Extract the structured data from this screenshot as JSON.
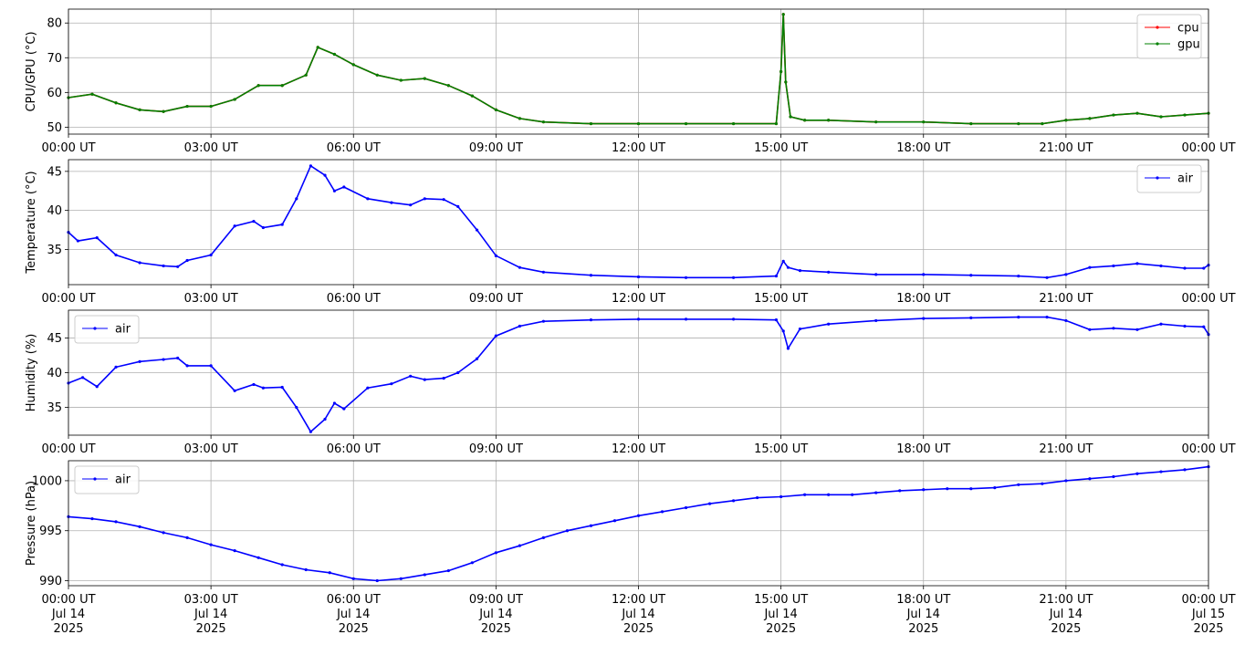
{
  "chart_data": [
    {
      "type": "line",
      "ylabel": "CPU/GPU (°C)",
      "xlim": [
        "2025-07-14 00:00",
        "2025-07-15 00:00"
      ],
      "ylim": [
        48,
        84
      ],
      "yticks": [
        50,
        60,
        70,
        80
      ],
      "grid": true,
      "legend": "top-right",
      "x_tick_labels": [
        "00:00 UT",
        "03:00 UT",
        "06:00 UT",
        "09:00 UT",
        "12:00 UT",
        "15:00 UT",
        "18:00 UT",
        "21:00 UT",
        "00:00 UT"
      ],
      "x_hours": [
        0,
        0.5,
        1,
        1.5,
        2,
        2.5,
        3,
        3.5,
        4,
        4.5,
        5,
        5.25,
        5.6,
        6,
        6.5,
        7,
        7.5,
        8,
        8.5,
        9,
        9.5,
        10,
        11,
        12,
        13,
        14,
        14.9,
        15.0,
        15.05,
        15.1,
        15.2,
        15.5,
        16,
        17,
        18,
        19,
        20,
        20.5,
        21,
        21.5,
        22,
        22.5,
        23,
        23.5,
        24
      ],
      "series": [
        {
          "name": "cpu",
          "color": "#ff0000",
          "values": [
            58.5,
            59.5,
            57,
            55,
            54.5,
            56,
            56,
            58,
            62,
            62,
            65,
            73,
            71,
            68,
            65,
            63.5,
            64,
            62,
            59,
            55,
            52.5,
            51.5,
            51,
            51,
            51,
            51,
            51,
            66,
            82.5,
            63,
            53,
            52,
            52,
            51.5,
            51.5,
            51,
            51,
            51,
            52,
            52.5,
            53.5,
            54,
            53,
            53.5,
            54
          ]
        },
        {
          "name": "gpu",
          "color": "#008000",
          "values": [
            58.5,
            59.5,
            57,
            55,
            54.5,
            56,
            56,
            58,
            62,
            62,
            65,
            73,
            71,
            68,
            65,
            63.5,
            64,
            62,
            59,
            55,
            52.5,
            51.5,
            51,
            51,
            51,
            51,
            51,
            66,
            82.5,
            63,
            53,
            52,
            52,
            51.5,
            51.5,
            51,
            51,
            51,
            52,
            52.5,
            53.5,
            54,
            53,
            53.5,
            54
          ]
        }
      ]
    },
    {
      "type": "line",
      "ylabel": "Temperature (°C)",
      "xlim": [
        "2025-07-14 00:00",
        "2025-07-15 00:00"
      ],
      "ylim": [
        30.5,
        46.5
      ],
      "yticks": [
        35,
        40,
        45
      ],
      "grid": true,
      "legend": "top-right",
      "x_tick_labels": [
        "00:00 UT",
        "03:00 UT",
        "06:00 UT",
        "09:00 UT",
        "12:00 UT",
        "15:00 UT",
        "18:00 UT",
        "21:00 UT",
        "00:00 UT"
      ],
      "x_hours": [
        0,
        0.2,
        0.6,
        1,
        1.5,
        2,
        2.3,
        2.5,
        3,
        3.5,
        3.9,
        4.1,
        4.5,
        4.8,
        5.1,
        5.4,
        5.6,
        5.8,
        6.3,
        6.8,
        7.2,
        7.5,
        7.9,
        8.2,
        8.6,
        9,
        9.5,
        10,
        11,
        12,
        13,
        14,
        14.9,
        15.05,
        15.15,
        15.4,
        16,
        17,
        18,
        19,
        20,
        20.6,
        21,
        21.5,
        22,
        22.5,
        23,
        23.5,
        23.9,
        24
      ],
      "series": [
        {
          "name": "air",
          "color": "#0000ff",
          "values": [
            37.2,
            36.1,
            36.5,
            34.3,
            33.3,
            32.9,
            32.8,
            33.6,
            34.3,
            38,
            38.6,
            37.8,
            38.2,
            41.5,
            45.7,
            44.5,
            42.5,
            43,
            41.5,
            41,
            40.7,
            41.5,
            41.4,
            40.5,
            37.5,
            34.2,
            32.7,
            32.1,
            31.7,
            31.5,
            31.4,
            31.4,
            31.6,
            33.5,
            32.7,
            32.3,
            32.1,
            31.8,
            31.8,
            31.7,
            31.6,
            31.4,
            31.8,
            32.7,
            32.9,
            33.2,
            32.9,
            32.6,
            32.6,
            33
          ]
        }
      ]
    },
    {
      "type": "line",
      "ylabel": "Humidity (%)",
      "xlim": [
        "2025-07-14 00:00",
        "2025-07-15 00:00"
      ],
      "ylim": [
        31,
        49
      ],
      "yticks": [
        35,
        40,
        45
      ],
      "grid": true,
      "legend": "top-left",
      "x_tick_labels": [
        "00:00 UT",
        "03:00 UT",
        "06:00 UT",
        "09:00 UT",
        "12:00 UT",
        "15:00 UT",
        "18:00 UT",
        "21:00 UT",
        "00:00 UT"
      ],
      "x_hours": [
        0,
        0.3,
        0.6,
        1,
        1.5,
        2,
        2.3,
        2.5,
        3,
        3.5,
        3.9,
        4.1,
        4.5,
        4.8,
        5.1,
        5.4,
        5.6,
        5.8,
        6.3,
        6.8,
        7.2,
        7.5,
        7.9,
        8.2,
        8.6,
        9,
        9.5,
        10,
        11,
        12,
        13,
        14,
        14.9,
        15.05,
        15.15,
        15.4,
        16,
        17,
        18,
        19,
        20,
        20.6,
        21,
        21.5,
        22,
        22.5,
        23,
        23.5,
        23.9,
        24
      ],
      "series": [
        {
          "name": "air",
          "color": "#0000ff",
          "values": [
            38.5,
            39.3,
            38,
            40.8,
            41.6,
            41.9,
            42.1,
            41,
            41,
            37.4,
            38.3,
            37.8,
            37.9,
            35,
            31.5,
            33.3,
            35.6,
            34.8,
            37.8,
            38.4,
            39.5,
            39,
            39.2,
            40,
            42,
            45.3,
            46.7,
            47.4,
            47.6,
            47.7,
            47.7,
            47.7,
            47.6,
            46,
            43.5,
            46.3,
            47,
            47.5,
            47.8,
            47.9,
            48,
            48,
            47.5,
            46.2,
            46.4,
            46.2,
            47,
            46.7,
            46.6,
            45.5
          ]
        }
      ]
    },
    {
      "type": "line",
      "ylabel": "Pressure (hPa)",
      "xlim": [
        "2025-07-14 00:00",
        "2025-07-15 00:00"
      ],
      "ylim": [
        989.5,
        1002
      ],
      "yticks": [
        990,
        995,
        1000
      ],
      "grid": true,
      "legend": "top-left",
      "x_tick_labels": [
        "00:00 UT",
        "03:00 UT",
        "06:00 UT",
        "09:00 UT",
        "12:00 UT",
        "15:00 UT",
        "18:00 UT",
        "21:00 UT",
        "00:00 UT"
      ],
      "x_date_labels": [
        "Jul 14",
        "Jul 14",
        "Jul 14",
        "Jul 14",
        "Jul 14",
        "Jul 14",
        "Jul 14",
        "Jul 14",
        "Jul 15"
      ],
      "x_year_labels": [
        "2025",
        "2025",
        "2025",
        "2025",
        "2025",
        "2025",
        "2025",
        "2025",
        "2025"
      ],
      "x_hours": [
        0,
        0.5,
        1,
        1.5,
        2,
        2.5,
        3,
        3.5,
        4,
        4.5,
        5,
        5.5,
        6,
        6.5,
        7,
        7.5,
        8,
        8.5,
        9,
        9.5,
        10,
        10.5,
        11,
        11.5,
        12,
        12.5,
        13,
        13.5,
        14,
        14.5,
        15,
        15.5,
        16,
        16.5,
        17,
        17.5,
        18,
        18.5,
        19,
        19.5,
        20,
        20.5,
        21,
        21.5,
        22,
        22.5,
        23,
        23.5,
        24
      ],
      "series": [
        {
          "name": "air",
          "color": "#0000ff",
          "values": [
            996.4,
            996.2,
            995.9,
            995.4,
            994.8,
            994.3,
            993.6,
            993.0,
            992.3,
            991.6,
            991.1,
            990.8,
            990.2,
            990.0,
            990.2,
            990.6,
            991.0,
            991.8,
            992.8,
            993.5,
            994.3,
            995.0,
            995.5,
            996.0,
            996.5,
            996.9,
            997.3,
            997.7,
            998.0,
            998.3,
            998.4,
            998.6,
            998.6,
            998.6,
            998.8,
            999.0,
            999.1,
            999.2,
            999.2,
            999.3,
            999.6,
            999.7,
            1000.0,
            1000.2,
            1000.4,
            1000.7,
            1000.9,
            1001.1,
            1001.4
          ]
        }
      ]
    }
  ]
}
